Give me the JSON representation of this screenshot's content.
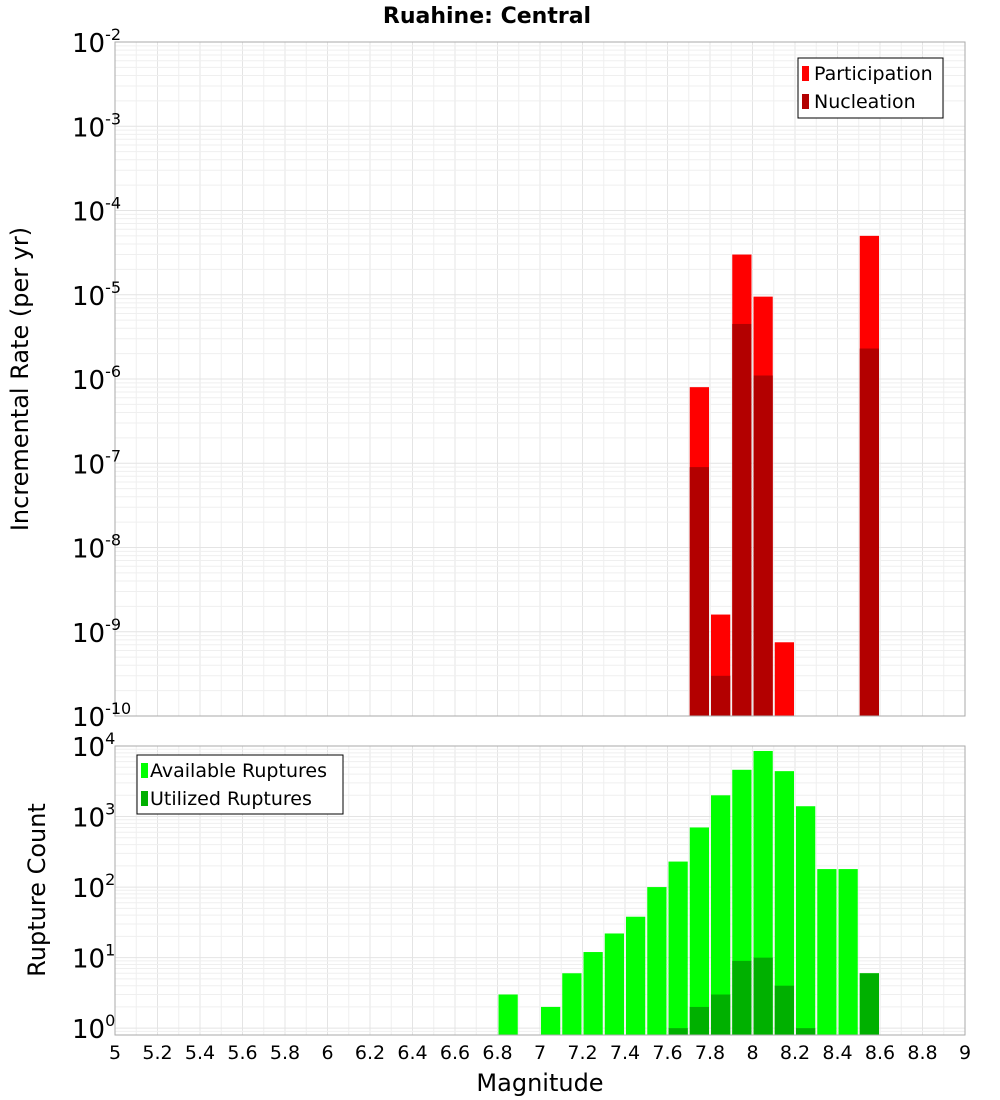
{
  "chart_data": [
    {
      "type": "bar",
      "title": "Ruahine: Central",
      "xlabel": "",
      "ylabel": "Incremental Rate (per yr)",
      "y_scale": "log",
      "ylim": [
        1e-10,
        0.01
      ],
      "xlim": [
        5,
        9
      ],
      "bin_width": 0.1,
      "legend_position": "top-right",
      "series": [
        {
          "name": "Participation",
          "color": "#ff0000",
          "x": [
            7.75,
            7.85,
            7.95,
            8.05,
            8.15,
            8.55
          ],
          "values": [
            8e-07,
            1.6e-09,
            3e-05,
            9.5e-06,
            7.5e-10,
            5e-05
          ]
        },
        {
          "name": "Nucleation",
          "color": "#b30000",
          "x": [
            7.75,
            7.85,
            7.95,
            8.05,
            8.55
          ],
          "values": [
            9e-08,
            3e-10,
            4.5e-06,
            1.1e-06,
            2.3e-06
          ]
        }
      ],
      "ytick_exponents": [
        -10,
        -9,
        -8,
        -7,
        -6,
        -5,
        -4,
        -3,
        -2
      ]
    },
    {
      "type": "bar",
      "title": "",
      "xlabel": "Magnitude",
      "ylabel": "Rupture Count",
      "y_scale": "log",
      "ylim": [
        0.8,
        10000
      ],
      "xlim": [
        5,
        9
      ],
      "bin_width": 0.1,
      "legend_position": "top-left",
      "series": [
        {
          "name": "Available Ruptures",
          "color": "#00ff00",
          "x": [
            6.85,
            7.05,
            7.15,
            7.25,
            7.35,
            7.45,
            7.55,
            7.65,
            7.75,
            7.85,
            7.95,
            8.05,
            8.15,
            8.25,
            8.35,
            8.45,
            8.55
          ],
          "values": [
            3,
            2,
            6,
            12,
            22,
            38,
            100,
            230,
            700,
            2000,
            4600,
            8500,
            4400,
            1400,
            180,
            180,
            6
          ]
        },
        {
          "name": "Utilized Ruptures",
          "color": "#00b000",
          "x": [
            7.65,
            7.75,
            7.85,
            7.95,
            8.05,
            8.15,
            8.25,
            8.55
          ],
          "values": [
            1,
            2,
            3,
            9,
            10,
            4,
            1,
            6
          ]
        }
      ],
      "ytick_exponents": [
        0,
        1,
        2,
        3,
        4
      ],
      "xticks": [
        "5",
        "5.2",
        "5.4",
        "5.6",
        "5.8",
        "6",
        "6.2",
        "6.4",
        "6.6",
        "6.8",
        "7",
        "7.2",
        "7.4",
        "7.6",
        "7.8",
        "8",
        "8.2",
        "8.4",
        "8.6",
        "8.8",
        "9"
      ]
    }
  ]
}
